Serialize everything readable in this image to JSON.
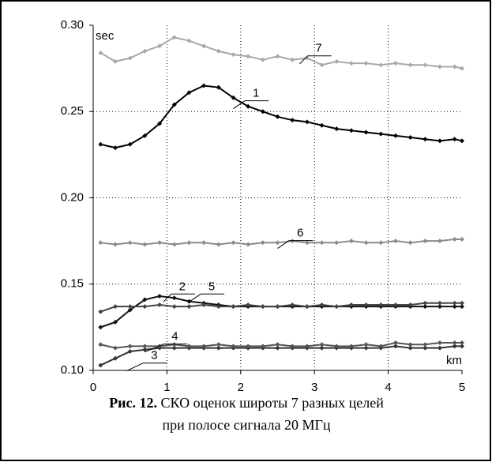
{
  "chart_data": {
    "type": "line",
    "xlabel": "km",
    "ylabel": "sec",
    "caption": {
      "label": "Рис. 12.",
      "lines": [
        "СКО оценок широты 7 разных  целей",
        "при полосе сигнала 20 МГц"
      ]
    },
    "x": [
      0.1,
      0.3,
      0.5,
      0.7,
      0.9,
      1.1,
      1.3,
      1.5,
      1.7,
      1.9,
      2.1,
      2.3,
      2.5,
      2.7,
      2.9,
      3.1,
      3.3,
      3.5,
      3.7,
      3.9,
      4.1,
      4.3,
      4.5,
      4.7,
      4.9,
      5.0
    ],
    "series": [
      {
        "name": "1",
        "color": "#000000",
        "values": [
          0.231,
          0.229,
          0.231,
          0.236,
          0.243,
          0.254,
          0.261,
          0.265,
          0.264,
          0.258,
          0.253,
          0.25,
          0.247,
          0.245,
          0.244,
          0.242,
          0.24,
          0.239,
          0.238,
          0.237,
          0.236,
          0.235,
          0.234,
          0.233,
          0.234,
          0.233
        ]
      },
      {
        "name": "2",
        "color": "#111111",
        "values": [
          0.125,
          0.128,
          0.135,
          0.141,
          0.143,
          0.142,
          0.14,
          0.139,
          0.138,
          0.137,
          0.137,
          0.137,
          0.137,
          0.137,
          0.137,
          0.137,
          0.137,
          0.137,
          0.137,
          0.137,
          0.137,
          0.137,
          0.137,
          0.137,
          0.137,
          0.137
        ]
      },
      {
        "name": "3",
        "color": "#333333",
        "values": [
          0.103,
          0.107,
          0.111,
          0.112,
          0.113,
          0.113,
          0.113,
          0.113,
          0.113,
          0.113,
          0.113,
          0.113,
          0.113,
          0.113,
          0.113,
          0.113,
          0.113,
          0.113,
          0.113,
          0.113,
          0.114,
          0.113,
          0.113,
          0.113,
          0.114,
          0.114
        ]
      },
      {
        "name": "4",
        "color": "#555555",
        "values": [
          0.115,
          0.113,
          0.114,
          0.114,
          0.114,
          0.115,
          0.114,
          0.114,
          0.115,
          0.114,
          0.114,
          0.114,
          0.115,
          0.114,
          0.114,
          0.115,
          0.114,
          0.114,
          0.115,
          0.114,
          0.116,
          0.115,
          0.115,
          0.116,
          0.116,
          0.116
        ]
      },
      {
        "name": "5",
        "color": "#444444",
        "values": [
          0.134,
          0.137,
          0.137,
          0.137,
          0.138,
          0.137,
          0.137,
          0.138,
          0.137,
          0.137,
          0.138,
          0.137,
          0.137,
          0.138,
          0.137,
          0.138,
          0.137,
          0.138,
          0.138,
          0.138,
          0.138,
          0.138,
          0.139,
          0.139,
          0.139,
          0.139
        ]
      },
      {
        "name": "6",
        "color": "#8a8a8a",
        "values": [
          0.174,
          0.173,
          0.174,
          0.173,
          0.174,
          0.173,
          0.174,
          0.174,
          0.173,
          0.174,
          0.173,
          0.174,
          0.174,
          0.175,
          0.174,
          0.174,
          0.174,
          0.175,
          0.174,
          0.174,
          0.175,
          0.174,
          0.175,
          0.175,
          0.176,
          0.176
        ]
      },
      {
        "name": "7",
        "color": "#a8a8a8",
        "values": [
          0.284,
          0.279,
          0.281,
          0.285,
          0.288,
          0.293,
          0.291,
          0.288,
          0.285,
          0.283,
          0.282,
          0.28,
          0.282,
          0.28,
          0.281,
          0.277,
          0.279,
          0.278,
          0.278,
          0.277,
          0.278,
          0.277,
          0.277,
          0.276,
          0.276,
          0.275
        ]
      }
    ],
    "xlim": [
      0,
      5
    ],
    "xticks": [
      0,
      1,
      2,
      3,
      4,
      5
    ],
    "ylim": [
      0.1,
      0.3
    ],
    "yticks": [
      {
        "value": 0.1,
        "label": "0.10"
      },
      {
        "value": 0.15,
        "label": "0.15"
      },
      {
        "value": 0.2,
        "label": "0.20"
      },
      {
        "value": 0.25,
        "label": "0.25"
      },
      {
        "value": 0.3,
        "label": "0.30"
      }
    ],
    "grid": true
  }
}
